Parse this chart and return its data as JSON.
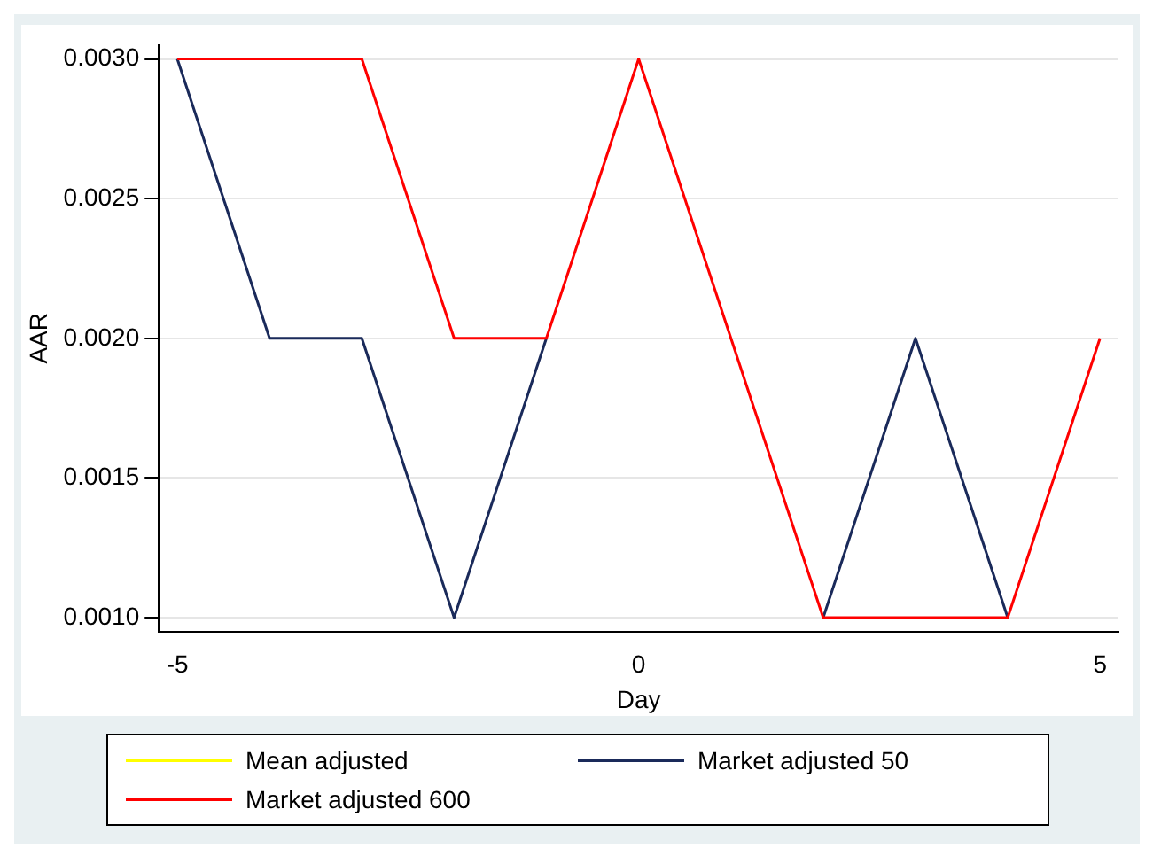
{
  "chart_data": {
    "type": "line",
    "xlabel": "Day",
    "ylabel": "AAR",
    "x": [
      -5,
      -4,
      -3,
      -2,
      -1,
      0,
      1,
      2,
      3,
      4,
      5
    ],
    "series": [
      {
        "name": "Mean adjusted",
        "color": "#ffff00",
        "values": [
          null,
          null,
          null,
          null,
          null,
          null,
          null,
          null,
          null,
          null,
          null
        ]
      },
      {
        "name": "Market adjusted 50",
        "color": "#1a2a5a",
        "values": [
          0.003,
          0.002,
          0.002,
          0.001,
          0.002,
          null,
          null,
          0.001,
          0.002,
          0.001,
          null
        ]
      },
      {
        "name": "Market adjusted 600",
        "color": "#ff0000",
        "values": [
          0.003,
          0.003,
          0.003,
          0.002,
          0.002,
          0.003,
          0.002,
          0.001,
          0.001,
          0.001,
          0.002
        ]
      }
    ],
    "xlim": [
      -5.2,
      5.2
    ],
    "xticks": [
      -5,
      0,
      5
    ],
    "ylim": [
      0.00095,
      0.00305
    ],
    "yticks": [
      {
        "value": 0.001,
        "label": "0.0010"
      },
      {
        "value": 0.0015,
        "label": "0.0015"
      },
      {
        "value": 0.002,
        "label": "0.0020"
      },
      {
        "value": 0.0025,
        "label": "0.0025"
      },
      {
        "value": 0.003,
        "label": "0.0030"
      }
    ],
    "grid": "y",
    "legend": "bottom",
    "marker": "none",
    "line_style": "solid"
  }
}
